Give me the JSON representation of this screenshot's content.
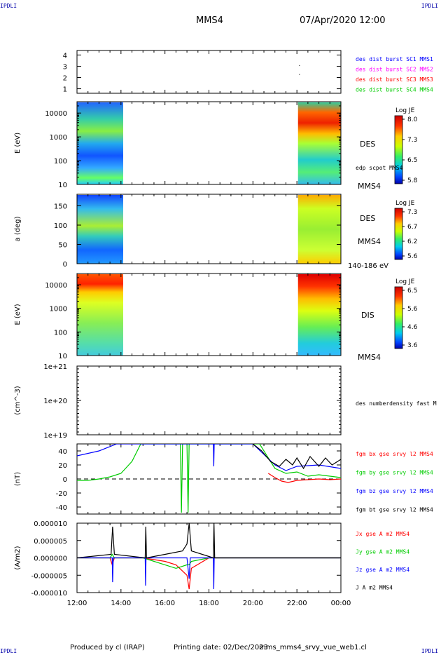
{
  "header": {
    "corner_left": "IPDLI",
    "corner_right": "IPDLI",
    "spacecraft": "MMS4",
    "datetime": "07/Apr/2020 12:00"
  },
  "footer": {
    "produced_by": "Produced by cl (IRAP)",
    "printing_date": "Printing date: 02/Dec/2023",
    "filename": "mms_mms4_srvy_vue_web1.cl",
    "corner_left": "IPDLI",
    "corner_right": "IPDLI"
  },
  "time_axis": {
    "ticks": [
      "12:00",
      "14:00",
      "16:00",
      "18:00",
      "20:00",
      "22:00",
      "00:00"
    ],
    "range_hours": [
      12,
      24
    ]
  },
  "colors": {
    "blue": "#0000ff",
    "magenta": "#ff00ff",
    "red": "#ff0000",
    "green": "#00cc00",
    "black": "#000000"
  },
  "chart_data": [
    {
      "type": "scatter",
      "id": "burst",
      "ylabel": "",
      "yticks": [
        "1",
        "2",
        "3",
        "4"
      ],
      "ylim": [
        0.6,
        4.4
      ],
      "legend": [
        {
          "label": "des dist burst SC1 MMS1",
          "color": "#0000ff"
        },
        {
          "label": "des dist burst SC2 MMS2",
          "color": "#ff00ff"
        },
        {
          "label": "des dist burst SC3 MMS3",
          "color": "#ff0000"
        },
        {
          "label": "des dist burst SC4 MMS4",
          "color": "#00cc00"
        }
      ],
      "points": [
        {
          "t": 22.1,
          "y": 3.1
        },
        {
          "t": 22.1,
          "y": 2.3
        }
      ]
    },
    {
      "type": "heatmap",
      "id": "des-energy",
      "ylabel": "E (eV)",
      "scale": "log",
      "yticks": [
        "10",
        "100",
        "1000",
        "10000"
      ],
      "ylim": [
        10,
        30000
      ],
      "right_labels": [
        "DES",
        "edp scpot MMS4",
        "MMS4"
      ],
      "colorbar": {
        "title": "Log JE",
        "ticks": [
          "8.0",
          "7.3",
          "6.5",
          "5.8"
        ],
        "range": [
          5.8,
          8.0
        ]
      },
      "data_intervals": [
        [
          12.0,
          14.1
        ],
        [
          22.05,
          24.0
        ]
      ]
    },
    {
      "type": "heatmap",
      "id": "des-pitch",
      "ylabel": "a (deg)",
      "yticks": [
        "0",
        "50",
        "100",
        "150"
      ],
      "ylim": [
        0,
        180
      ],
      "right_labels": [
        "DES",
        "MMS4",
        "140-186 eV"
      ],
      "colorbar": {
        "title": "Log JE",
        "ticks": [
          "7.3",
          "6.7",
          "6.2",
          "5.6"
        ],
        "range": [
          5.6,
          7.3
        ]
      },
      "data_intervals": [
        [
          12.0,
          14.1
        ],
        [
          22.05,
          24.0
        ]
      ]
    },
    {
      "type": "heatmap",
      "id": "dis-energy",
      "ylabel": "E (eV)",
      "scale": "log",
      "yticks": [
        "10",
        "100",
        "1000",
        "10000"
      ],
      "ylim": [
        10,
        30000
      ],
      "right_labels": [
        "DIS",
        "MMS4"
      ],
      "colorbar": {
        "title": "Log JE",
        "ticks": [
          "6.5",
          "5.6",
          "4.6",
          "3.6"
        ],
        "range": [
          3.6,
          6.5
        ]
      },
      "data_intervals": [
        [
          12.0,
          14.1
        ],
        [
          22.05,
          24.0
        ]
      ]
    },
    {
      "type": "line",
      "id": "density",
      "ylabel": "(cm^-3)",
      "scale": "log",
      "yticks": [
        "1e+19",
        "1e+20",
        "1e+21"
      ],
      "right_labels": [
        "des numberdensity fast M"
      ],
      "series": []
    },
    {
      "type": "line",
      "id": "fgm",
      "ylabel": "(nT)",
      "yticks": [
        "-40",
        "-20",
        "0",
        "20",
        "40"
      ],
      "ylim": [
        -50,
        50
      ],
      "zero_line": true,
      "series": [
        {
          "name": "fgm bx gse srvy l2 MMS4",
          "color": "#ff0000",
          "x": [
            20.7,
            21.0,
            21.3,
            21.6,
            22.0,
            22.5,
            23.0,
            23.5,
            24.0
          ],
          "y": [
            8,
            2,
            -3,
            -5,
            -2,
            -1,
            0,
            -1,
            0
          ]
        },
        {
          "name": "fgm by gse srvy l2 MMS4",
          "color": "#00cc00",
          "x": [
            12.0,
            12.5,
            13.0,
            13.5,
            14.0,
            14.5,
            14.9,
            16.7,
            16.75,
            16.8,
            17.0,
            17.05,
            17.1,
            20.3,
            20.7,
            21.0,
            21.5,
            22.0,
            22.5,
            23.0,
            24.0
          ],
          "y": [
            -2,
            -2,
            0,
            3,
            8,
            25,
            50,
            50,
            -48,
            50,
            50,
            -48,
            50,
            50,
            30,
            15,
            8,
            10,
            4,
            6,
            2
          ]
        },
        {
          "name": "fgm bz gse srvy l2 MMS4",
          "color": "#0000ff",
          "x": [
            12.0,
            13.0,
            13.8,
            18.2,
            18.22,
            18.24,
            20.0,
            20.5,
            21.0,
            21.5,
            22.0,
            23.0,
            24.0
          ],
          "y": [
            33,
            40,
            50,
            50,
            18,
            50,
            50,
            35,
            20,
            12,
            18,
            20,
            15
          ]
        },
        {
          "name": "fgm bt gse srvy l2 MMS4",
          "color": "#000000",
          "x": [
            20.0,
            20.4,
            20.8,
            21.2,
            21.5,
            21.8,
            22.0,
            22.3,
            22.6,
            23.0,
            23.3,
            23.6,
            24.0
          ],
          "y": [
            50,
            40,
            25,
            18,
            28,
            20,
            30,
            15,
            32,
            18,
            30,
            20,
            28
          ]
        }
      ]
    },
    {
      "type": "line",
      "id": "current",
      "ylabel": "(A/m2)",
      "yticks": [
        "0.000010",
        "0.000005",
        "0.000000",
        "-0.000005",
        "-0.000010"
      ],
      "ylim": [
        -1e-05,
        1e-05
      ],
      "series": [
        {
          "name": "Jx gse A m2 MMS4",
          "color": "#ff0000",
          "x": [
            12.0,
            13.5,
            13.6,
            13.7,
            14.0,
            15.0,
            16.0,
            16.5,
            17.0,
            17.1,
            17.2,
            18.0,
            24.0
          ],
          "y": [
            0,
            0,
            -2e-06,
            0,
            0,
            0,
            -1e-06,
            -2e-06,
            -5e-06,
            -9e-06,
            -3e-06,
            0,
            0
          ]
        },
        {
          "name": "Jy gse A m2 MMS4",
          "color": "#00cc00",
          "x": [
            12.0,
            13.5,
            13.6,
            13.7,
            14.0,
            15.0,
            16.0,
            16.5,
            17.0,
            17.1,
            17.2,
            18.0,
            24.0
          ],
          "y": [
            0,
            0,
            1e-06,
            0,
            0,
            0,
            -2e-06,
            -3e-06,
            -2e-06,
            -2e-06,
            -1e-06,
            0,
            0
          ]
        },
        {
          "name": "Jz gse A m2 MMS4",
          "color": "#0000ff",
          "x": [
            12.0,
            13.6,
            13.62,
            13.65,
            15.1,
            15.12,
            15.14,
            17.0,
            17.1,
            17.15,
            18.2,
            18.22,
            18.24,
            24.0
          ],
          "y": [
            0,
            0,
            -7e-06,
            0,
            0,
            -8e-06,
            0,
            0,
            -6e-06,
            0,
            0,
            -9e-06,
            0,
            0
          ]
        },
        {
          "name": "J A m2 MMS4",
          "color": "#000000",
          "x": [
            12.0,
            13.55,
            13.62,
            13.7,
            15.1,
            15.13,
            15.16,
            16.0,
            16.8,
            17.0,
            17.1,
            17.2,
            18.2,
            18.23,
            18.26,
            24.0
          ],
          "y": [
            0,
            1e-06,
            9e-06,
            1e-06,
            0,
            9e-06,
            0,
            1e-06,
            2e-06,
            4e-06,
            1e-05,
            2e-06,
            0,
            1e-05,
            0,
            0
          ]
        }
      ]
    }
  ]
}
